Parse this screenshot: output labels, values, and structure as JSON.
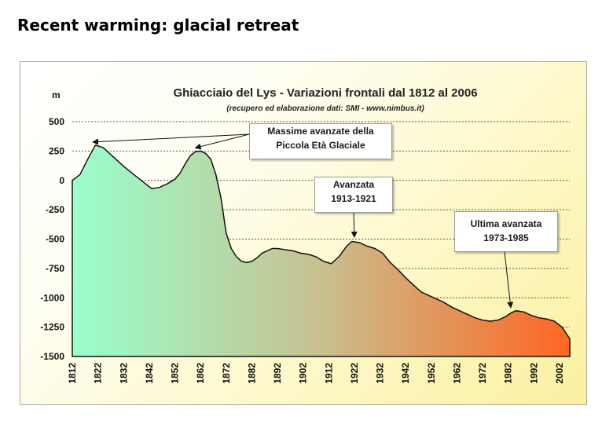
{
  "slide": {
    "title": "Recent warming: glacial retreat"
  },
  "colors": {
    "fill_left": "#99ffcc",
    "fill_mid": "#c8c090",
    "fill_right": "#ff6622",
    "outline": "#111111",
    "grid": "#555555"
  },
  "chart_data": {
    "type": "area",
    "title": "Ghiacciaio del Lys - Variazioni frontali dal 1812 al 2006",
    "subtitle": "(recupero ed elaborazione dati: SMI - www.nimbus.it)",
    "ylabel": "m",
    "ylim": [
      -1500,
      500
    ],
    "xlim": [
      1812,
      2006
    ],
    "yticks": [
      500,
      250,
      0,
      -250,
      -500,
      -750,
      -1000,
      -1250,
      -1500
    ],
    "xticks": [
      1812,
      1822,
      1832,
      1842,
      1852,
      1862,
      1872,
      1882,
      1892,
      1902,
      1912,
      1922,
      1932,
      1942,
      1952,
      1962,
      1972,
      1982,
      1992,
      2002
    ],
    "grid": true,
    "x": [
      1812,
      1815,
      1818,
      1821,
      1824,
      1828,
      1832,
      1836,
      1840,
      1843,
      1846,
      1849,
      1852,
      1854,
      1856,
      1858,
      1860,
      1862,
      1864,
      1866,
      1868,
      1870,
      1872,
      1874,
      1876,
      1878,
      1880,
      1882,
      1884,
      1886,
      1888,
      1890,
      1892,
      1895,
      1898,
      1901,
      1904,
      1907,
      1910,
      1913,
      1916,
      1919,
      1921,
      1924,
      1927,
      1930,
      1933,
      1936,
      1939,
      1942,
      1945,
      1948,
      1951,
      1954,
      1957,
      1960,
      1963,
      1966,
      1969,
      1972,
      1975,
      1978,
      1981,
      1983,
      1985,
      1988,
      1991,
      1994,
      1997,
      2000,
      2003,
      2006
    ],
    "y": [
      0,
      50,
      180,
      300,
      280,
      200,
      120,
      50,
      -20,
      -70,
      -60,
      -30,
      10,
      60,
      140,
      210,
      245,
      250,
      230,
      180,
      50,
      -150,
      -450,
      -580,
      -650,
      -690,
      -700,
      -690,
      -660,
      -620,
      -600,
      -580,
      -580,
      -590,
      -600,
      -620,
      -630,
      -650,
      -690,
      -710,
      -650,
      -560,
      -520,
      -530,
      -560,
      -580,
      -620,
      -700,
      -760,
      -830,
      -890,
      -950,
      -980,
      -1010,
      -1040,
      -1080,
      -1110,
      -1140,
      -1170,
      -1190,
      -1200,
      -1190,
      -1160,
      -1130,
      -1110,
      -1120,
      -1150,
      -1170,
      -1180,
      -1200,
      -1250,
      -1350
    ],
    "annotations": [
      {
        "line1": "Massime avanzate della",
        "line2": "Piccola Età Glaciale"
      },
      {
        "line1": "Avanzata",
        "line2": "1913-1921"
      },
      {
        "line1": "Ultima avanzata",
        "line2": "1973-1985"
      }
    ]
  }
}
